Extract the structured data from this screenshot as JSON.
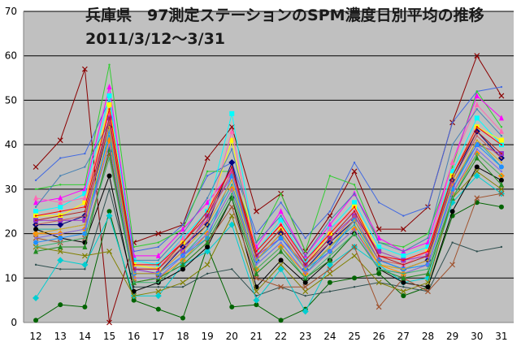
{
  "chart_data": {
    "type": "line",
    "title": "兵庫県　97測定ステーションのSPM濃度日別平均の推移",
    "subtitle": "2011/3/12～3/31",
    "xlabel": "",
    "ylabel": "",
    "x": [
      "12",
      "13",
      "14",
      "15",
      "16",
      "17",
      "18",
      "19",
      "20",
      "21",
      "22",
      "23",
      "24",
      "25",
      "26",
      "27",
      "28",
      "29",
      "30",
      "31"
    ],
    "ylim": [
      0,
      70
    ],
    "yticks": [
      "0",
      "10",
      "20",
      "30",
      "40",
      "50",
      "60",
      "70"
    ],
    "grid": "horizontal",
    "legend": "none",
    "plot_background": "#c0c0c0",
    "series": [
      {
        "color": "#8b0000",
        "marker": "x",
        "values": [
          35,
          41,
          57,
          0,
          18,
          20,
          22,
          37,
          44,
          25,
          29,
          16,
          24,
          34,
          21,
          21,
          26,
          45,
          60,
          51
        ]
      },
      {
        "color": "#4169e1",
        "marker": "none",
        "values": [
          32,
          37,
          38,
          50,
          16,
          17,
          22,
          33,
          36,
          20,
          27,
          19,
          25,
          36,
          27,
          24,
          26,
          45,
          52,
          53
        ]
      },
      {
        "color": "#32cd32",
        "marker": "none",
        "values": [
          30,
          31,
          31,
          58,
          17,
          18,
          21,
          34,
          34,
          18,
          29,
          16,
          33,
          31,
          18,
          17,
          20,
          35,
          52,
          44
        ]
      },
      {
        "color": "#ff00ff",
        "marker": "triangle",
        "values": [
          27,
          28,
          30,
          53,
          15,
          15,
          21,
          27,
          34,
          17,
          25,
          15,
          22,
          29,
          19,
          16,
          18,
          36,
          51,
          46
        ]
      },
      {
        "color": "#00ffff",
        "marker": "square",
        "values": [
          25,
          26,
          29,
          51,
          14,
          13,
          19,
          25,
          47,
          16,
          23,
          14,
          21,
          27,
          17,
          15,
          17,
          34,
          46,
          40
        ]
      },
      {
        "color": "#ffff00",
        "marker": "square",
        "values": [
          24,
          24,
          27,
          49,
          13,
          12,
          18,
          24,
          41,
          15,
          21,
          13,
          20,
          26,
          16,
          14,
          16,
          33,
          44,
          41
        ]
      },
      {
        "color": "#ff69b4",
        "marker": "triangle",
        "values": [
          28,
          27,
          28,
          47,
          12,
          12,
          19,
          23,
          43,
          16,
          22,
          13,
          21,
          25,
          15,
          13,
          16,
          36,
          49,
          43
        ]
      },
      {
        "color": "#000080",
        "marker": "diamond",
        "values": [
          22,
          22,
          24,
          44,
          11,
          11,
          17,
          22,
          36,
          14,
          20,
          12,
          18,
          23,
          14,
          12,
          14,
          32,
          43,
          37
        ]
      },
      {
        "color": "#9932cc",
        "marker": "square",
        "values": [
          23,
          23,
          23,
          46,
          12,
          11,
          16,
          24,
          33,
          15,
          19,
          13,
          19,
          24,
          16,
          14,
          15,
          31,
          40,
          38
        ]
      },
      {
        "color": "#20b2aa",
        "marker": "none",
        "values": [
          21,
          21,
          22,
          42,
          10,
          10,
          15,
          21,
          31,
          13,
          18,
          11,
          17,
          22,
          13,
          12,
          13,
          30,
          41,
          35
        ]
      },
      {
        "color": "#ff8c00",
        "marker": "diamond",
        "values": [
          20,
          20,
          21,
          41,
          10,
          10,
          14,
          20,
          30,
          12,
          17,
          11,
          16,
          21,
          13,
          11,
          13,
          29,
          38,
          33
        ]
      },
      {
        "color": "#006400",
        "marker": "circle",
        "values": [
          0.5,
          4,
          3.5,
          25,
          5,
          3,
          1,
          17,
          3.5,
          4,
          0.5,
          3,
          9,
          10,
          11,
          6,
          8,
          24,
          27,
          26
        ]
      },
      {
        "color": "#2f4f4f",
        "marker": "none",
        "values": [
          13,
          12,
          12,
          30,
          8,
          8,
          8,
          11,
          12,
          6,
          8,
          6,
          7,
          8,
          9,
          8,
          7,
          18,
          16,
          17
        ]
      },
      {
        "color": "#00ced1",
        "marker": "diamond",
        "values": [
          5.5,
          14,
          13,
          24,
          6,
          6,
          13,
          16,
          22,
          5,
          12,
          2.5,
          13,
          17,
          13,
          9,
          10,
          27,
          33,
          29
        ]
      },
      {
        "color": "#000000",
        "marker": "circle",
        "values": [
          21,
          19,
          18,
          33,
          7,
          9,
          12,
          17,
          28,
          8,
          14,
          9,
          14,
          20,
          12,
          9,
          8,
          25,
          35,
          32
        ]
      },
      {
        "color": "#808000",
        "marker": "x",
        "values": [
          17,
          16,
          15,
          16,
          6,
          7,
          9,
          13,
          24,
          7,
          13,
          7,
          11,
          15,
          9,
          7,
          9,
          28,
          34,
          30
        ]
      },
      {
        "color": "#a0522d",
        "marker": "x",
        "values": [
          19,
          18,
          19,
          38,
          9,
          10,
          13,
          18,
          26,
          10,
          8,
          8,
          12,
          17,
          3.5,
          10,
          7,
          13,
          28,
          29
        ]
      },
      {
        "color": "#4682b4",
        "marker": "none",
        "values": [
          26,
          33,
          35,
          45,
          14,
          14,
          20,
          28,
          39,
          18,
          24,
          15,
          23,
          29,
          18,
          16,
          19,
          40,
          48,
          42
        ]
      },
      {
        "color": "#ff0000",
        "marker": "none",
        "values": [
          24,
          25,
          26,
          48,
          13,
          13,
          18,
          25,
          35,
          16,
          22,
          14,
          20,
          26,
          15,
          14,
          16,
          33,
          44,
          40
        ]
      },
      {
        "color": "#1e90ff",
        "marker": "circle",
        "values": [
          18,
          19,
          20,
          43,
          11,
          11,
          15,
          19,
          33,
          14,
          19,
          12,
          16,
          23,
          14,
          12,
          13,
          30,
          40,
          35
        ]
      },
      {
        "color": "#228b22",
        "marker": "triangle",
        "values": [
          16,
          17,
          17,
          39,
          9,
          10,
          13,
          18,
          28,
          11,
          16,
          10,
          14,
          20,
          12,
          10,
          11,
          28,
          37,
          31
        ]
      },
      {
        "color": "#cd5c5c",
        "marker": "none",
        "values": [
          22,
          23,
          24,
          45,
          12,
          12,
          17,
          23,
          34,
          15,
          21,
          13,
          18,
          24,
          14,
          13,
          15,
          32,
          42,
          37
        ]
      },
      {
        "color": "#daa520",
        "marker": "none",
        "values": [
          20,
          21,
          22,
          44,
          11,
          11,
          16,
          22,
          32,
          14,
          20,
          12,
          17,
          23,
          13,
          12,
          14,
          31,
          41,
          36
        ]
      },
      {
        "color": "#7b68ee",
        "marker": "none",
        "values": [
          19,
          20,
          21,
          40,
          10,
          10,
          15,
          20,
          30,
          13,
          18,
          11,
          16,
          21,
          12,
          11,
          13,
          29,
          39,
          34
        ]
      },
      {
        "color": "#3cb371",
        "marker": "none",
        "values": [
          17,
          18,
          19,
          37,
          9,
          9,
          14,
          19,
          29,
          12,
          17,
          10,
          15,
          20,
          12,
          11,
          12,
          28,
          38,
          33
        ]
      },
      {
        "color": "#b22222",
        "marker": "none",
        "values": [
          23,
          24,
          25,
          46,
          12,
          12,
          18,
          24,
          35,
          15,
          21,
          13,
          19,
          25,
          15,
          13,
          15,
          33,
          43,
          38
        ]
      }
    ]
  }
}
